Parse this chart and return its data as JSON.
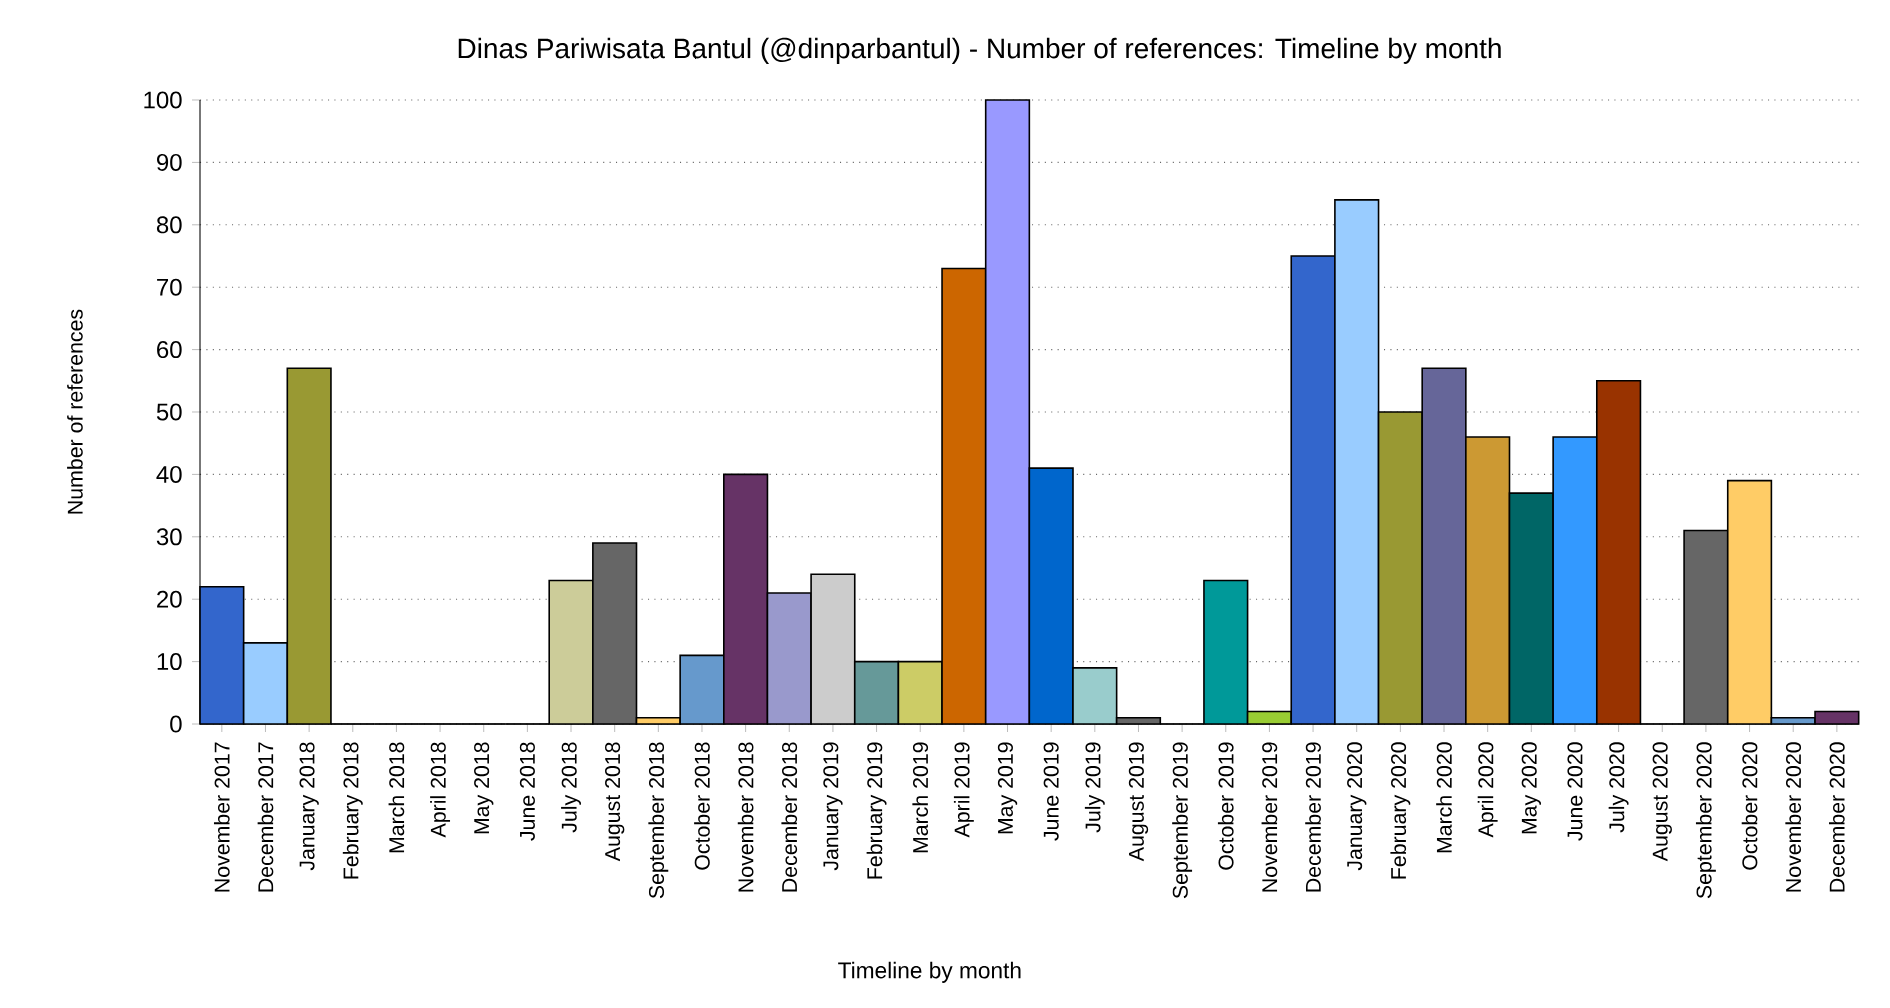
{
  "chart_data": {
    "type": "bar",
    "title": "Dinas Pariwisata Bantul (@dinparbantul) - Number of references: Timeline by month",
    "xlabel": "Timeline by month",
    "ylabel": "Number of references",
    "categories": [
      "November 2017",
      "December 2017",
      "January 2018",
      "February 2018",
      "March 2018",
      "April 2018",
      "May 2018",
      "June 2018",
      "July 2018",
      "August 2018",
      "September 2018",
      "October 2018",
      "November 2018",
      "December 2018",
      "January 2019",
      "February 2019",
      "March 2019",
      "April 2019",
      "May 2019",
      "June 2019",
      "July 2019",
      "August 2019",
      "September 2019",
      "October 2019",
      "November 2019",
      "December 2019",
      "January 2020",
      "February 2020",
      "March 2020",
      "April 2020",
      "May 2020",
      "June 2020",
      "July 2020",
      "August 2020",
      "September 2020",
      "October 2020",
      "November 2020",
      "December 2020"
    ],
    "values": [
      22,
      13,
      57,
      0,
      0,
      0,
      0,
      0,
      23,
      29,
      1,
      11,
      40,
      21,
      24,
      10,
      10,
      73,
      100,
      41,
      9,
      1,
      0,
      23,
      2,
      75,
      84,
      50,
      57,
      46,
      37,
      46,
      55,
      0,
      31,
      39,
      1,
      2
    ],
    "colors": [
      "#3366cc",
      "#99ccff",
      "#999933",
      "#666699",
      "#cc9933",
      "#006666",
      "#3399ff",
      "#993300",
      "#cccc99",
      "#666666",
      "#ffcc66",
      "#6699cc",
      "#663366",
      "#9999cc",
      "#cccccc",
      "#669999",
      "#cccc66",
      "#cc6600",
      "#9999ff",
      "#0066cc",
      "#99cccc",
      "#666666",
      "#ffcc00",
      "#009999",
      "#99cc33",
      "#3366cc",
      "#99ccff",
      "#999933",
      "#666699",
      "#cc9933",
      "#006666",
      "#3399ff",
      "#993300",
      "#cccc99",
      "#666666",
      "#ffcc66",
      "#6699cc",
      "#663366"
    ],
    "ylim": [
      0,
      100
    ],
    "yticks": [
      0,
      10,
      20,
      30,
      40,
      50,
      60,
      70,
      80,
      90,
      100
    ],
    "grid": "y"
  }
}
